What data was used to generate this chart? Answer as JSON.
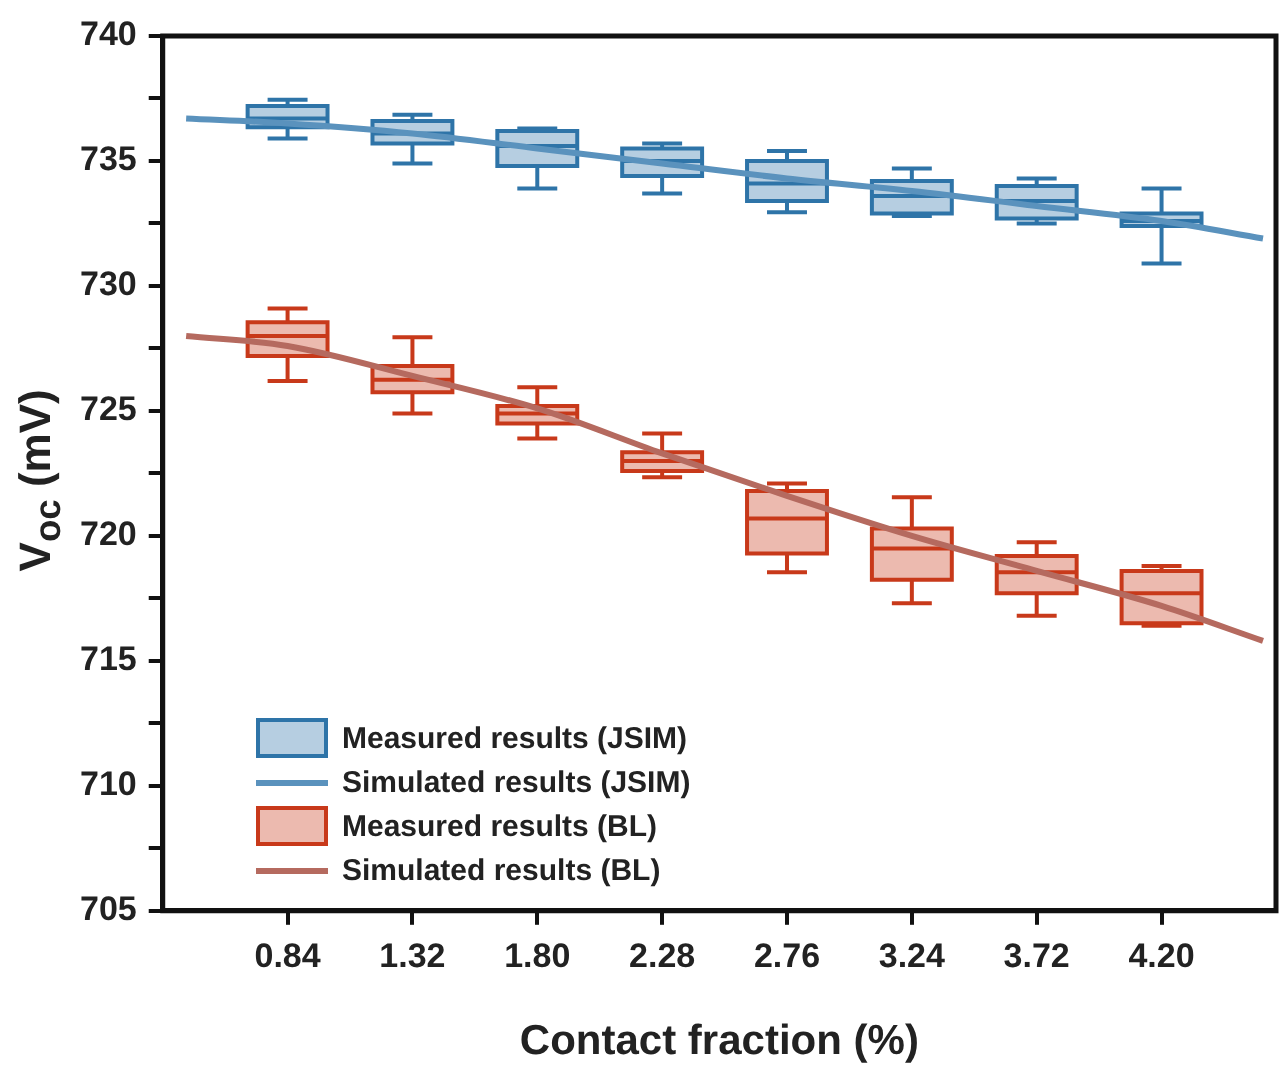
{
  "chart_data": {
    "type": "box",
    "xlabel": "Contact fraction (%)",
    "ylabel": "V$_{oc}$ (mV)",
    "xlim": [
      0.36,
      4.64
    ],
    "xticks": [
      0.84,
      1.32,
      {
        "value": 1.8,
        "label": "1.80"
      },
      2.28,
      2.76,
      3.24,
      3.72,
      {
        "value": 4.2,
        "label": "4.20"
      }
    ],
    "ylim": [
      705,
      740
    ],
    "yticks": [
      705,
      {
        "value": 707.5,
        "label": null
      },
      710,
      {
        "value": 712.5,
        "label": null
      },
      715,
      {
        "value": 717.5,
        "label": null
      },
      720,
      {
        "value": 722.5,
        "label": null
      },
      725,
      {
        "value": 727.5,
        "label": null
      },
      730,
      {
        "value": 732.5,
        "label": null
      },
      735,
      {
        "value": 737.5,
        "label": null
      },
      740
    ],
    "grid": false,
    "legend": "bottom left",
    "series": [
      {
        "type": "box",
        "name": "Measured results (JSIM)",
        "color": "#2e74a8",
        "x": [
          0.84,
          1.32,
          1.8,
          2.28,
          2.76,
          3.24,
          3.72,
          4.2
        ],
        "boxes": [
          {
            "low": 735.9,
            "q1": 736.35,
            "median": 736.7,
            "q3": 737.2,
            "high": 737.45
          },
          {
            "low": 734.9,
            "q1": 735.7,
            "median": 736.1,
            "q3": 736.6,
            "high": 736.85
          },
          {
            "low": 733.9,
            "q1": 734.8,
            "median": 735.6,
            "q3": 736.2,
            "high": 736.3
          },
          {
            "low": 733.7,
            "q1": 734.4,
            "median": 735.0,
            "q3": 735.5,
            "high": 735.7
          },
          {
            "low": 732.95,
            "q1": 733.4,
            "median": 734.1,
            "q3": 735.0,
            "high": 735.4
          },
          {
            "low": 732.8,
            "q1": 732.9,
            "median": 733.6,
            "q3": 734.2,
            "high": 734.7
          },
          {
            "low": 732.5,
            "q1": 732.7,
            "median": 733.4,
            "q3": 734.0,
            "high": 734.3
          },
          {
            "low": 730.9,
            "q1": 732.4,
            "median": 732.6,
            "q3": 732.9,
            "high": 733.9
          }
        ]
      },
      {
        "type": "line",
        "name": "Simulated results (JSIM)",
        "color": "#5a92bd",
        "x": [
          0.45,
          0.84,
          1.32,
          1.8,
          2.28,
          2.76,
          3.24,
          3.72,
          4.2,
          4.59
        ],
        "values": [
          736.7,
          736.5,
          736.1,
          735.5,
          734.9,
          734.3,
          733.8,
          733.2,
          732.6,
          731.9
        ]
      },
      {
        "type": "box",
        "name": "Measured results (BL)",
        "color": "#c8391a",
        "x": [
          0.84,
          1.32,
          1.8,
          2.28,
          2.76,
          3.24,
          3.72,
          4.2
        ],
        "boxes": [
          {
            "low": 726.2,
            "q1": 727.2,
            "median": 728.0,
            "q3": 728.55,
            "high": 729.1
          },
          {
            "low": 724.9,
            "q1": 725.75,
            "median": 726.25,
            "q3": 726.8,
            "high": 727.95
          },
          {
            "low": 723.9,
            "q1": 724.5,
            "median": 724.9,
            "q3": 725.2,
            "high": 725.95
          },
          {
            "low": 722.35,
            "q1": 722.6,
            "median": 723.0,
            "q3": 723.35,
            "high": 724.1
          },
          {
            "low": 718.55,
            "q1": 719.3,
            "median": 720.7,
            "q3": 721.8,
            "high": 722.1
          },
          {
            "low": 717.3,
            "q1": 718.25,
            "median": 719.5,
            "q3": 720.3,
            "high": 721.55
          },
          {
            "low": 716.8,
            "q1": 717.7,
            "median": 718.55,
            "q3": 719.2,
            "high": 719.75
          },
          {
            "low": 716.4,
            "q1": 716.5,
            "median": 717.7,
            "q3": 718.6,
            "high": 718.8
          }
        ]
      },
      {
        "type": "line",
        "name": "Simulated results (BL)",
        "color": "#b56a5f",
        "x": [
          0.45,
          0.84,
          1.32,
          1.8,
          2.28,
          2.76,
          3.24,
          3.72,
          4.2,
          4.59
        ],
        "values": [
          728.0,
          727.6,
          726.4,
          725.1,
          723.3,
          721.6,
          720.0,
          718.6,
          717.2,
          715.8
        ]
      }
    ]
  }
}
